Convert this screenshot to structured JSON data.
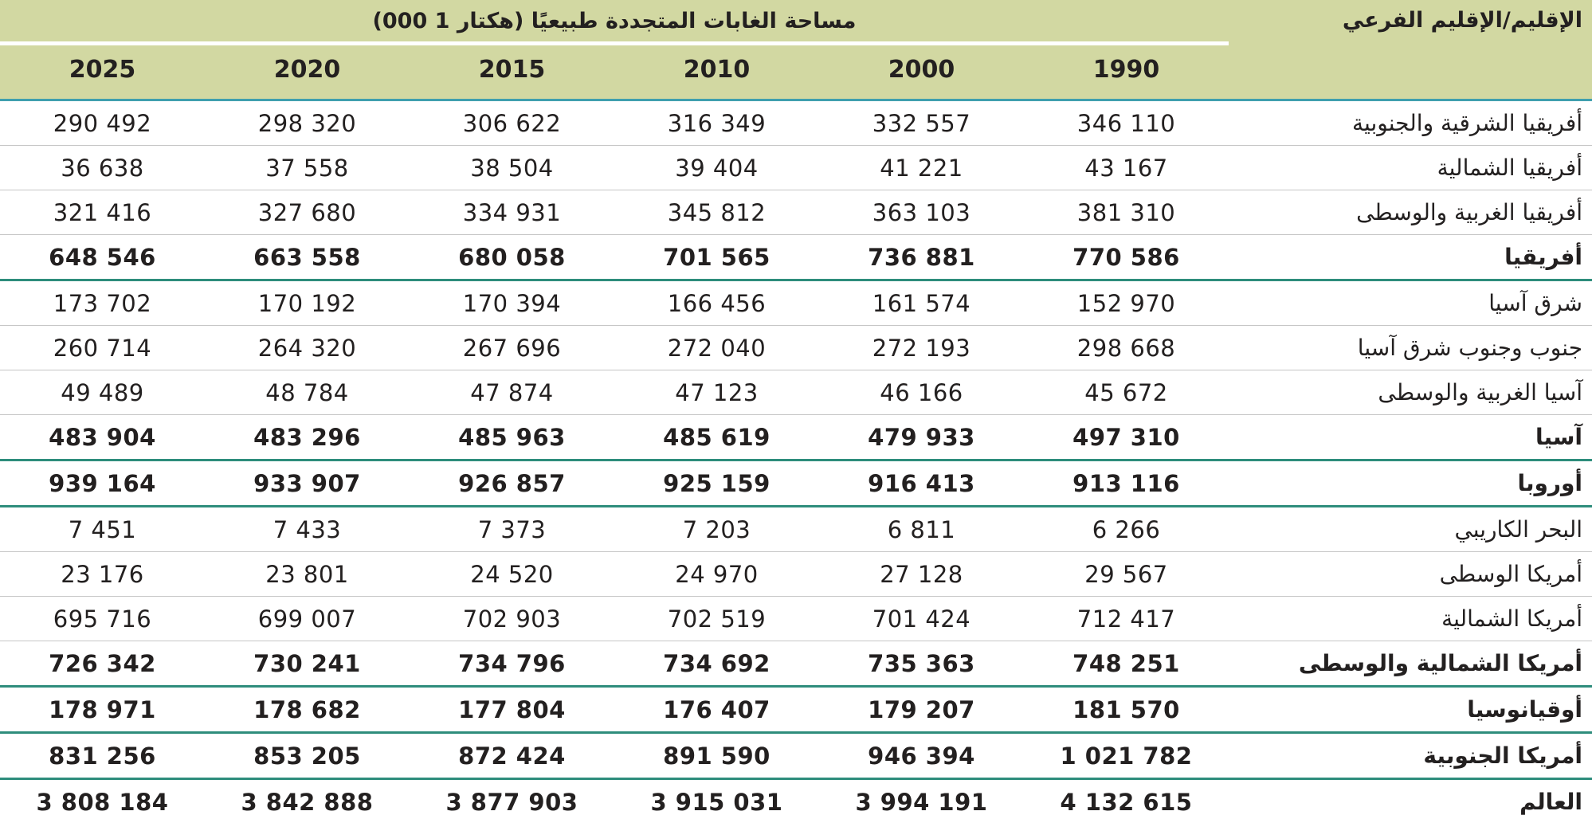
{
  "table": {
    "title": "مساحة الغابات المتجددة طبيعيًا (هكتار 1 000)",
    "region_header": "الإقليم/الإقليم الفرعي",
    "unit": "1 000 هكتار",
    "years": [
      "2025",
      "2020",
      "2015",
      "2010",
      "2000",
      "1990"
    ],
    "rows": [
      {
        "region": "أفريقيا الشرقية والجنوبية",
        "bold": false,
        "values": [
          "290 492",
          "298 320",
          "306 622",
          "316 349",
          "332 557",
          "346 110"
        ]
      },
      {
        "region": "أفريقيا الشمالية",
        "bold": false,
        "values": [
          "36 638",
          "37 558",
          "38 504",
          "39 404",
          "41 221",
          "43 167"
        ]
      },
      {
        "region": "أفريقيا الغربية والوسطى",
        "bold": false,
        "values": [
          "321 416",
          "327 680",
          "334 931",
          "345 812",
          "363 103",
          "381 310"
        ]
      },
      {
        "region": "أفريقيا",
        "bold": true,
        "values": [
          "648 546",
          "663 558",
          "680 058",
          "701 565",
          "736 881",
          "770 586"
        ]
      },
      {
        "region": "شرق آسيا",
        "bold": false,
        "values": [
          "173 702",
          "170 192",
          "170 394",
          "166 456",
          "161 574",
          "152 970"
        ]
      },
      {
        "region": "جنوب وجنوب شرق آسيا",
        "bold": false,
        "values": [
          "260 714",
          "264 320",
          "267 696",
          "272 040",
          "272 193",
          "298 668"
        ]
      },
      {
        "region": "آسيا الغربية والوسطى",
        "bold": false,
        "values": [
          "49 489",
          "48 784",
          "47 874",
          "47 123",
          "46 166",
          "45 672"
        ]
      },
      {
        "region": "آسيا",
        "bold": true,
        "values": [
          "483 904",
          "483 296",
          "485 963",
          "485 619",
          "479 933",
          "497 310"
        ]
      },
      {
        "region": "أوروبا",
        "bold": true,
        "values": [
          "939 164",
          "933 907",
          "926 857",
          "925 159",
          "916 413",
          "913 116"
        ]
      },
      {
        "region": "البحر الكاريبي",
        "bold": false,
        "values": [
          "7 451",
          "7 433",
          "7 373",
          "7 203",
          "6 811",
          "6 266"
        ]
      },
      {
        "region": "أمريكا الوسطى",
        "bold": false,
        "values": [
          "23 176",
          "23 801",
          "24 520",
          "24 970",
          "27 128",
          "29 567"
        ]
      },
      {
        "region": "أمريكا الشمالية",
        "bold": false,
        "values": [
          "695 716",
          "699 007",
          "702 903",
          "702 519",
          "701 424",
          "712 417"
        ]
      },
      {
        "region": "أمريكا الشمالية والوسطى",
        "bold": true,
        "values": [
          "726 342",
          "730 241",
          "734 796",
          "734 692",
          "735 363",
          "748 251"
        ]
      },
      {
        "region": "أوقيانوسيا",
        "bold": true,
        "values": [
          "178 971",
          "178 682",
          "177 804",
          "176 407",
          "179 207",
          "181 570"
        ]
      },
      {
        "region": "أمريكا الجنوبية",
        "bold": true,
        "values": [
          "831 256",
          "853 205",
          "872 424",
          "891 590",
          "946 394",
          "1 021 782"
        ]
      },
      {
        "region": "العالم",
        "bold": true,
        "values": [
          "3 808 184",
          "3 842 888",
          "3 877 903",
          "3 915 031",
          "3 994 191",
          "4 132 615"
        ]
      }
    ]
  },
  "colors": {
    "header_bg": "#d2d8a2",
    "header_line": "#3f9fae",
    "section_line": "#2e8d7c",
    "row_line": "#c6c6c6",
    "text": "#232020"
  }
}
